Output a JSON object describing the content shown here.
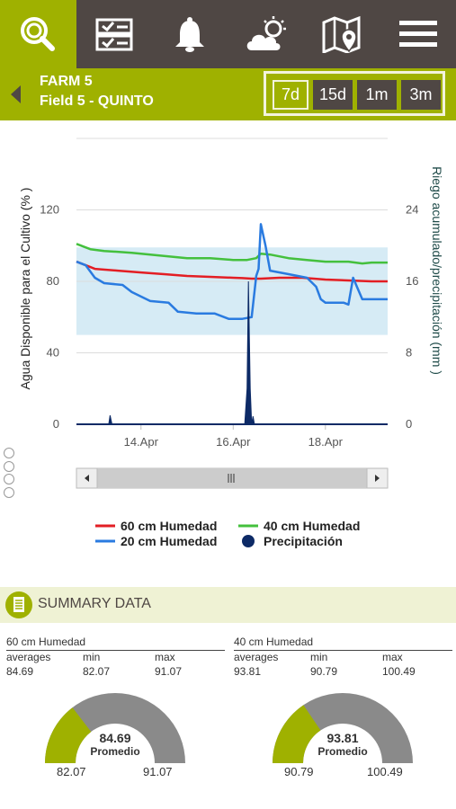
{
  "nav": {
    "items": [
      {
        "icon": "search-icon",
        "active": true
      },
      {
        "icon": "checklist-icon",
        "active": false
      },
      {
        "icon": "bell-icon",
        "active": false
      },
      {
        "icon": "weather-icon",
        "active": false
      },
      {
        "icon": "map-pin-icon",
        "active": false
      },
      {
        "icon": "menu-icon",
        "active": false
      }
    ]
  },
  "header": {
    "farm": "FARM 5",
    "field": "Field 5 - QUINTO",
    "ranges": [
      {
        "label": "7d",
        "active": true
      },
      {
        "label": "15d",
        "active": false
      },
      {
        "label": "1m",
        "active": false
      },
      {
        "label": "3m",
        "active": false
      }
    ]
  },
  "chart_data": {
    "type": "line",
    "left_axis": {
      "title": "Agua Disponible para el Cultivo (% )",
      "ticks": [
        0,
        40,
        80,
        120
      ],
      "range": [
        0,
        160
      ]
    },
    "right_axis": {
      "title": "Riego acumulado/precipitación (mm )",
      "ticks": [
        0,
        8,
        16,
        24
      ],
      "range": [
        0,
        32
      ]
    },
    "x_ticks": [
      "14.Apr",
      "16.Apr",
      "18.Apr"
    ],
    "x_range_days": [
      12.6,
      19.35
    ],
    "optimal_band": [
      50,
      99
    ],
    "series": [
      {
        "name": "60 cm Humedad",
        "color": "#e31e24",
        "axis": "left",
        "points": [
          [
            12.6,
            91
          ],
          [
            12.8,
            89
          ],
          [
            13.0,
            87
          ],
          [
            13.5,
            86
          ],
          [
            14.0,
            85
          ],
          [
            14.5,
            84
          ],
          [
            15.0,
            83
          ],
          [
            15.5,
            82.5
          ],
          [
            16.0,
            82
          ],
          [
            16.2,
            81.8
          ],
          [
            16.4,
            81.5
          ],
          [
            16.6,
            81.5
          ],
          [
            17.0,
            82
          ],
          [
            17.5,
            82
          ],
          [
            18.0,
            81
          ],
          [
            18.5,
            80.5
          ],
          [
            19.0,
            80
          ],
          [
            19.35,
            80
          ]
        ]
      },
      {
        "name": "40 cm Humedad",
        "color": "#44c03d",
        "axis": "left",
        "points": [
          [
            12.6,
            101
          ],
          [
            12.9,
            98
          ],
          [
            13.2,
            97
          ],
          [
            13.8,
            96
          ],
          [
            14.2,
            95
          ],
          [
            14.6,
            94
          ],
          [
            15.0,
            93
          ],
          [
            15.5,
            93
          ],
          [
            16.0,
            92
          ],
          [
            16.3,
            92
          ],
          [
            16.5,
            93
          ],
          [
            16.6,
            95.5
          ],
          [
            16.8,
            95
          ],
          [
            17.2,
            93
          ],
          [
            17.6,
            92
          ],
          [
            18.0,
            91
          ],
          [
            18.5,
            91
          ],
          [
            18.8,
            90
          ],
          [
            19.0,
            90.5
          ],
          [
            19.35,
            90.5
          ]
        ]
      },
      {
        "name": "20 cm Humedad",
        "color": "#2a7be0",
        "axis": "left",
        "points": [
          [
            12.6,
            91
          ],
          [
            12.8,
            89
          ],
          [
            13.0,
            82
          ],
          [
            13.2,
            79
          ],
          [
            13.6,
            78
          ],
          [
            13.8,
            74
          ],
          [
            14.2,
            69
          ],
          [
            14.6,
            68
          ],
          [
            14.8,
            63
          ],
          [
            15.2,
            62
          ],
          [
            15.6,
            62
          ],
          [
            15.9,
            59
          ],
          [
            16.2,
            59
          ],
          [
            16.4,
            60
          ],
          [
            16.5,
            83
          ],
          [
            16.55,
            87
          ],
          [
            16.6,
            112
          ],
          [
            16.7,
            100
          ],
          [
            16.8,
            86
          ],
          [
            17.2,
            84
          ],
          [
            17.6,
            82
          ],
          [
            17.8,
            77
          ],
          [
            17.9,
            70
          ],
          [
            18.0,
            68
          ],
          [
            18.2,
            68
          ],
          [
            18.4,
            68
          ],
          [
            18.5,
            67
          ],
          [
            18.6,
            82
          ],
          [
            18.7,
            76
          ],
          [
            18.8,
            70
          ],
          [
            19.0,
            70
          ],
          [
            19.35,
            70
          ]
        ]
      },
      {
        "name": "Precipitación",
        "color": "#0d2a66",
        "axis": "right",
        "points": [
          [
            13.3,
            0
          ],
          [
            13.33,
            1.0
          ],
          [
            13.37,
            0
          ],
          [
            16.25,
            0
          ],
          [
            16.3,
            4
          ],
          [
            16.33,
            16
          ],
          [
            16.37,
            4
          ],
          [
            16.4,
            0
          ],
          [
            16.43,
            0.9
          ],
          [
            16.46,
            0
          ]
        ]
      }
    ],
    "legend": [
      "60 cm Humedad",
      "40 cm Humedad",
      "20 cm Humedad",
      "Precipitación"
    ]
  },
  "summary": {
    "title": "SUMMARY DATA",
    "labels": {
      "averages": "averages",
      "min": "min",
      "max": "max",
      "promedio": "Promedio"
    },
    "panels": [
      {
        "label": "60 cm Humedad",
        "averages": "84.69",
        "min": "82.07",
        "max": "91.07",
        "fraction": 0.292
      },
      {
        "label": "40 cm Humedad",
        "averages": "93.81",
        "min": "90.79",
        "max": "100.49",
        "fraction": 0.311
      }
    ]
  }
}
